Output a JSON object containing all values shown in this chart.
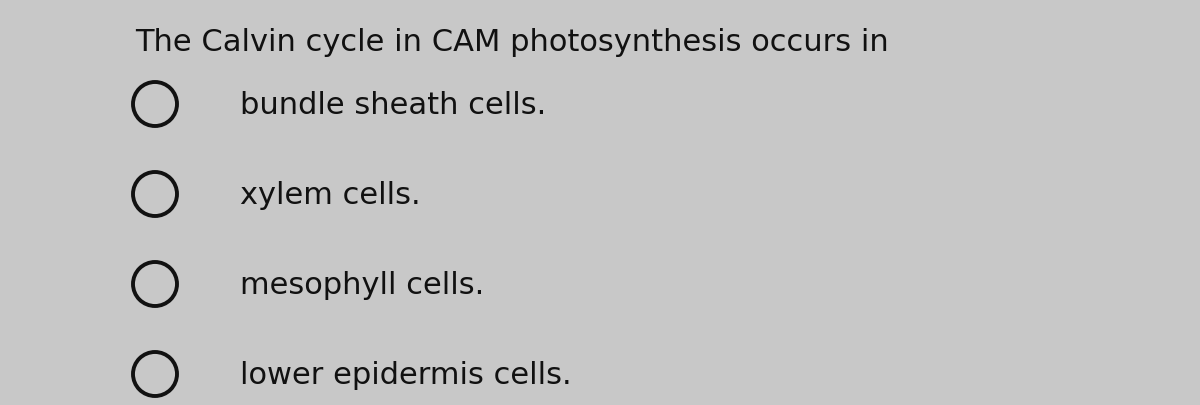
{
  "title": "The Calvin cycle in CAM photosynthesis occurs in",
  "options": [
    "bundle sheath cells.",
    "xylem cells.",
    "mesophyll cells.",
    "lower epidermis cells."
  ],
  "title_fontsize": 22,
  "option_fontsize": 22,
  "background_color": "#c8c8c8",
  "text_color": "#111111",
  "circle_edge_color": "#111111",
  "circle_face_color": "#c8c8c8",
  "circle_linewidth": 2.8,
  "figwidth": 12.0,
  "figheight": 4.06,
  "dpi": 100
}
